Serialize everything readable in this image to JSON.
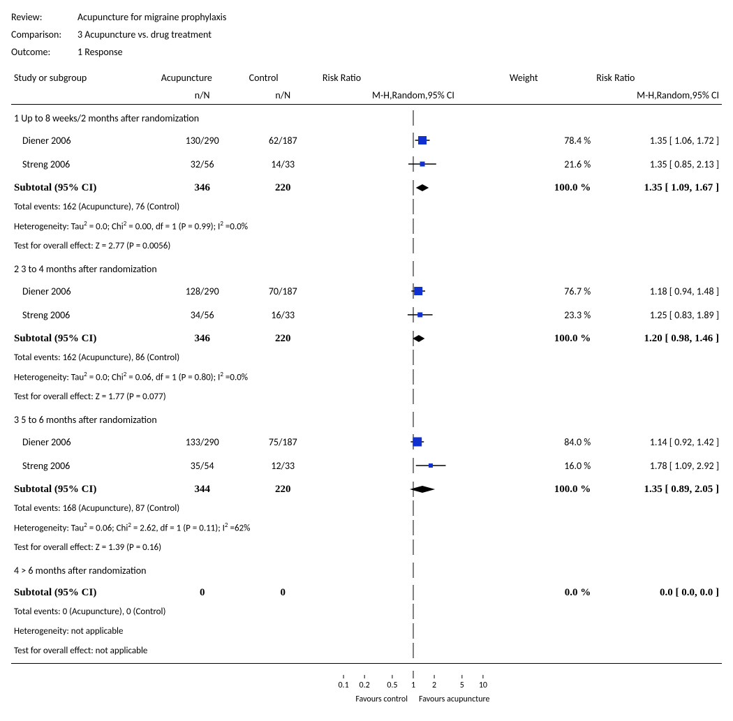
{
  "meta": {
    "review_label": "Review:",
    "review": "Acupuncture for migraine prophylaxis",
    "comparison_label": "Comparison:",
    "comparison": "3 Acupuncture vs. drug treatment",
    "outcome_label": "Outcome:",
    "outcome": "1 Response"
  },
  "headers": {
    "study": "Study or subgroup",
    "acu": "Acupuncture",
    "ctrl": "Control",
    "nN": "n/N",
    "rr": "Risk Ratio",
    "mh": "M-H,Random,95% CI",
    "weight": "Weight"
  },
  "axis": {
    "ticks": [
      0.1,
      0.2,
      0.5,
      1,
      2,
      5,
      10
    ],
    "tick_labels": [
      "0.1",
      "0.2",
      "0.5",
      "1",
      "2",
      "5",
      "10"
    ],
    "min": 0.05,
    "max": 20,
    "left_label": "Favours control",
    "right_label": "Favours acupuncture"
  },
  "style": {
    "square_color": "#1030d0",
    "diamond_color": "#000000",
    "line_color": "#000000",
    "vline_color": "#000000"
  },
  "groups": [
    {
      "title": "1 Up to 8 weeks/2 months after randomization",
      "studies": [
        {
          "name": "Diener 2006",
          "acu": "130/290",
          "ctrl": "62/187",
          "weight": "78.4 %",
          "rr_text": "1.35 [ 1.06, 1.72 ]",
          "est": 1.35,
          "lo": 1.06,
          "hi": 1.72,
          "sq": 12
        },
        {
          "name": "Streng 2006",
          "acu": "32/56",
          "ctrl": "14/33",
          "weight": "21.6 %",
          "rr_text": "1.35 [ 0.85, 2.13 ]",
          "est": 1.35,
          "lo": 0.85,
          "hi": 2.13,
          "sq": 7
        }
      ],
      "subtotal": {
        "label": "Subtotal (95% CI)",
        "acu": "346",
        "ctrl": "220",
        "weight": "100.0 %",
        "rr_text": "1.35 [ 1.09, 1.67 ]",
        "est": 1.35,
        "lo": 1.09,
        "hi": 1.67,
        "show": true
      },
      "stats": [
        "Total events: 162 (Acupuncture), 76 (Control)",
        "Heterogeneity: Tau² = 0.0; Chi² = 0.00, df = 1 (P = 0.99); I² =0.0%",
        "Test for overall effect: Z = 2.77 (P = 0.0056)"
      ]
    },
    {
      "title": "2 3 to 4 months after randomization",
      "studies": [
        {
          "name": "Diener 2006",
          "acu": "128/290",
          "ctrl": "70/187",
          "weight": "76.7 %",
          "rr_text": "1.18 [ 0.94, 1.48 ]",
          "est": 1.18,
          "lo": 0.94,
          "hi": 1.48,
          "sq": 12
        },
        {
          "name": "Streng 2006",
          "acu": "34/56",
          "ctrl": "16/33",
          "weight": "23.3 %",
          "rr_text": "1.25 [ 0.83, 1.89 ]",
          "est": 1.25,
          "lo": 0.83,
          "hi": 1.89,
          "sq": 7
        }
      ],
      "subtotal": {
        "label": "Subtotal (95% CI)",
        "acu": "346",
        "ctrl": "220",
        "weight": "100.0 %",
        "rr_text": "1.20 [ 0.98, 1.46 ]",
        "est": 1.2,
        "lo": 0.98,
        "hi": 1.46,
        "show": true
      },
      "stats": [
        "Total events: 162 (Acupuncture), 86 (Control)",
        "Heterogeneity: Tau² = 0.0; Chi² = 0.06, df = 1 (P = 0.80); I² =0.0%",
        "Test for overall effect: Z = 1.77 (P = 0.077)"
      ]
    },
    {
      "title": "3 5 to 6 months after randomization",
      "studies": [
        {
          "name": "Diener 2006",
          "acu": "133/290",
          "ctrl": "75/187",
          "weight": "84.0 %",
          "rr_text": "1.14 [ 0.92, 1.42 ]",
          "est": 1.14,
          "lo": 0.92,
          "hi": 1.42,
          "sq": 13
        },
        {
          "name": "Streng 2006",
          "acu": "35/54",
          "ctrl": "12/33",
          "weight": "16.0 %",
          "rr_text": "1.78 [ 1.09, 2.92 ]",
          "est": 1.78,
          "lo": 1.09,
          "hi": 2.92,
          "sq": 6
        }
      ],
      "subtotal": {
        "label": "Subtotal (95% CI)",
        "acu": "344",
        "ctrl": "220",
        "weight": "100.0 %",
        "rr_text": "1.35 [ 0.89, 2.05 ]",
        "est": 1.35,
        "lo": 0.89,
        "hi": 2.05,
        "show": true
      },
      "stats": [
        "Total events: 168 (Acupuncture), 87 (Control)",
        "Heterogeneity: Tau² = 0.06; Chi² = 2.62, df = 1 (P = 0.11); I² =62%",
        "Test for overall effect: Z = 1.39 (P = 0.16)"
      ]
    },
    {
      "title": "4 > 6 months after randomization",
      "studies": [],
      "subtotal": {
        "label": "Subtotal (95% CI)",
        "acu": "0",
        "ctrl": "0",
        "weight": "0.0 %",
        "rr_text": "0.0 [ 0.0, 0.0 ]",
        "est": null,
        "lo": null,
        "hi": null,
        "show": false
      },
      "stats": [
        "Total events: 0 (Acupuncture), 0 (Control)",
        "Heterogeneity: not applicable",
        "Test for overall effect: not applicable"
      ]
    }
  ]
}
